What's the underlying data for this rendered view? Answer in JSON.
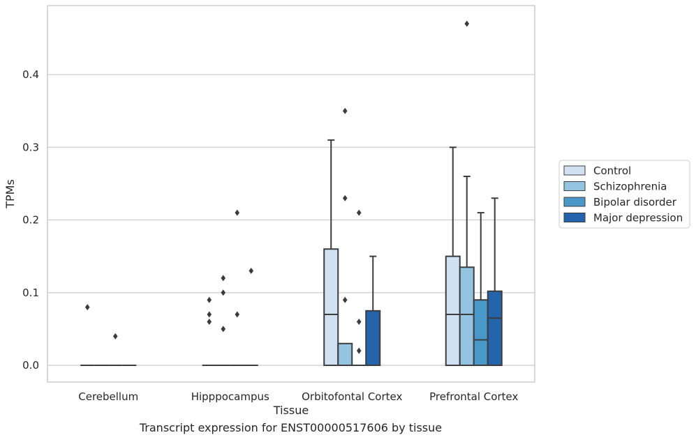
{
  "caption": "Transcript expression for ENST00000517606 by tissue",
  "colors": {
    "Control": "#d0e1f2",
    "Schizophrenia": "#94c4df",
    "Bipolar disorder": "#4a98c9",
    "Major depression": "#2464ab",
    "edge": "#3c3c3c",
    "grid": "#cccccc"
  },
  "chart_data": {
    "type": "box",
    "xlabel": "Tissue",
    "ylabel": "TPMs",
    "categories": [
      "Cerebellum",
      "Hipppocampus",
      "Orbitofontal Cortex",
      "Prefrontal Cortex"
    ],
    "ylim": [
      -0.023,
      0.495
    ],
    "yticks": [
      0.0,
      0.1,
      0.2,
      0.3,
      0.4
    ],
    "ytick_labels": [
      "0.0",
      "0.1",
      "0.2",
      "0.3",
      "0.4"
    ],
    "grid": "horizontal",
    "legend_position": "right",
    "legend": [
      "Control",
      "Schizophrenia",
      "Bipolar disorder",
      "Major depression"
    ],
    "series": [
      {
        "name": "Control",
        "boxes": [
          {
            "q1": 0,
            "median": 0,
            "q3": 0,
            "whisker_low": 0,
            "whisker_high": 0,
            "outliers": [
              0.08
            ]
          },
          {
            "q1": 0,
            "median": 0,
            "q3": 0,
            "whisker_low": 0,
            "whisker_high": 0,
            "outliers": [
              0.06,
              0.07,
              0.09
            ]
          },
          {
            "q1": 0,
            "median": 0.07,
            "q3": 0.16,
            "whisker_low": 0,
            "whisker_high": 0.31,
            "outliers": []
          },
          {
            "q1": 0,
            "median": 0.07,
            "q3": 0.15,
            "whisker_low": 0,
            "whisker_high": 0.3,
            "outliers": []
          }
        ]
      },
      {
        "name": "Schizophrenia",
        "boxes": [
          {
            "q1": 0,
            "median": 0,
            "q3": 0,
            "whisker_low": 0,
            "whisker_high": 0,
            "outliers": []
          },
          {
            "q1": 0,
            "median": 0,
            "q3": 0,
            "whisker_low": 0,
            "whisker_high": 0,
            "outliers": [
              0.05,
              0.1,
              0.12
            ]
          },
          {
            "q1": 0,
            "median": 0,
            "q3": 0.03,
            "whisker_low": 0,
            "whisker_high": 0.03,
            "outliers": [
              0.09,
              0.23,
              0.35
            ]
          },
          {
            "q1": 0,
            "median": 0.07,
            "q3": 0.135,
            "whisker_low": 0,
            "whisker_high": 0.26,
            "outliers": [
              0.47
            ]
          }
        ]
      },
      {
        "name": "Bipolar disorder",
        "boxes": [
          {
            "q1": 0,
            "median": 0,
            "q3": 0,
            "whisker_low": 0,
            "whisker_high": 0,
            "outliers": [
              0.04
            ]
          },
          {
            "q1": 0,
            "median": 0,
            "q3": 0,
            "whisker_low": 0,
            "whisker_high": 0,
            "outliers": [
              0.07,
              0.21
            ]
          },
          {
            "q1": 0,
            "median": 0,
            "q3": 0,
            "whisker_low": 0,
            "whisker_high": 0,
            "outliers": [
              0.02,
              0.06,
              0.21
            ]
          },
          {
            "q1": 0,
            "median": 0.035,
            "q3": 0.09,
            "whisker_low": 0,
            "whisker_high": 0.21,
            "outliers": []
          }
        ]
      },
      {
        "name": "Major depression",
        "boxes": [
          {
            "q1": 0,
            "median": 0,
            "q3": 0,
            "whisker_low": 0,
            "whisker_high": 0,
            "outliers": []
          },
          {
            "q1": 0,
            "median": 0,
            "q3": 0,
            "whisker_low": 0,
            "whisker_high": 0,
            "outliers": [
              0.13
            ]
          },
          {
            "q1": 0,
            "median": 0,
            "q3": 0.075,
            "whisker_low": 0,
            "whisker_high": 0.15,
            "outliers": []
          },
          {
            "q1": 0,
            "median": 0.065,
            "q3": 0.102,
            "whisker_low": 0,
            "whisker_high": 0.23,
            "outliers": []
          }
        ]
      }
    ]
  }
}
